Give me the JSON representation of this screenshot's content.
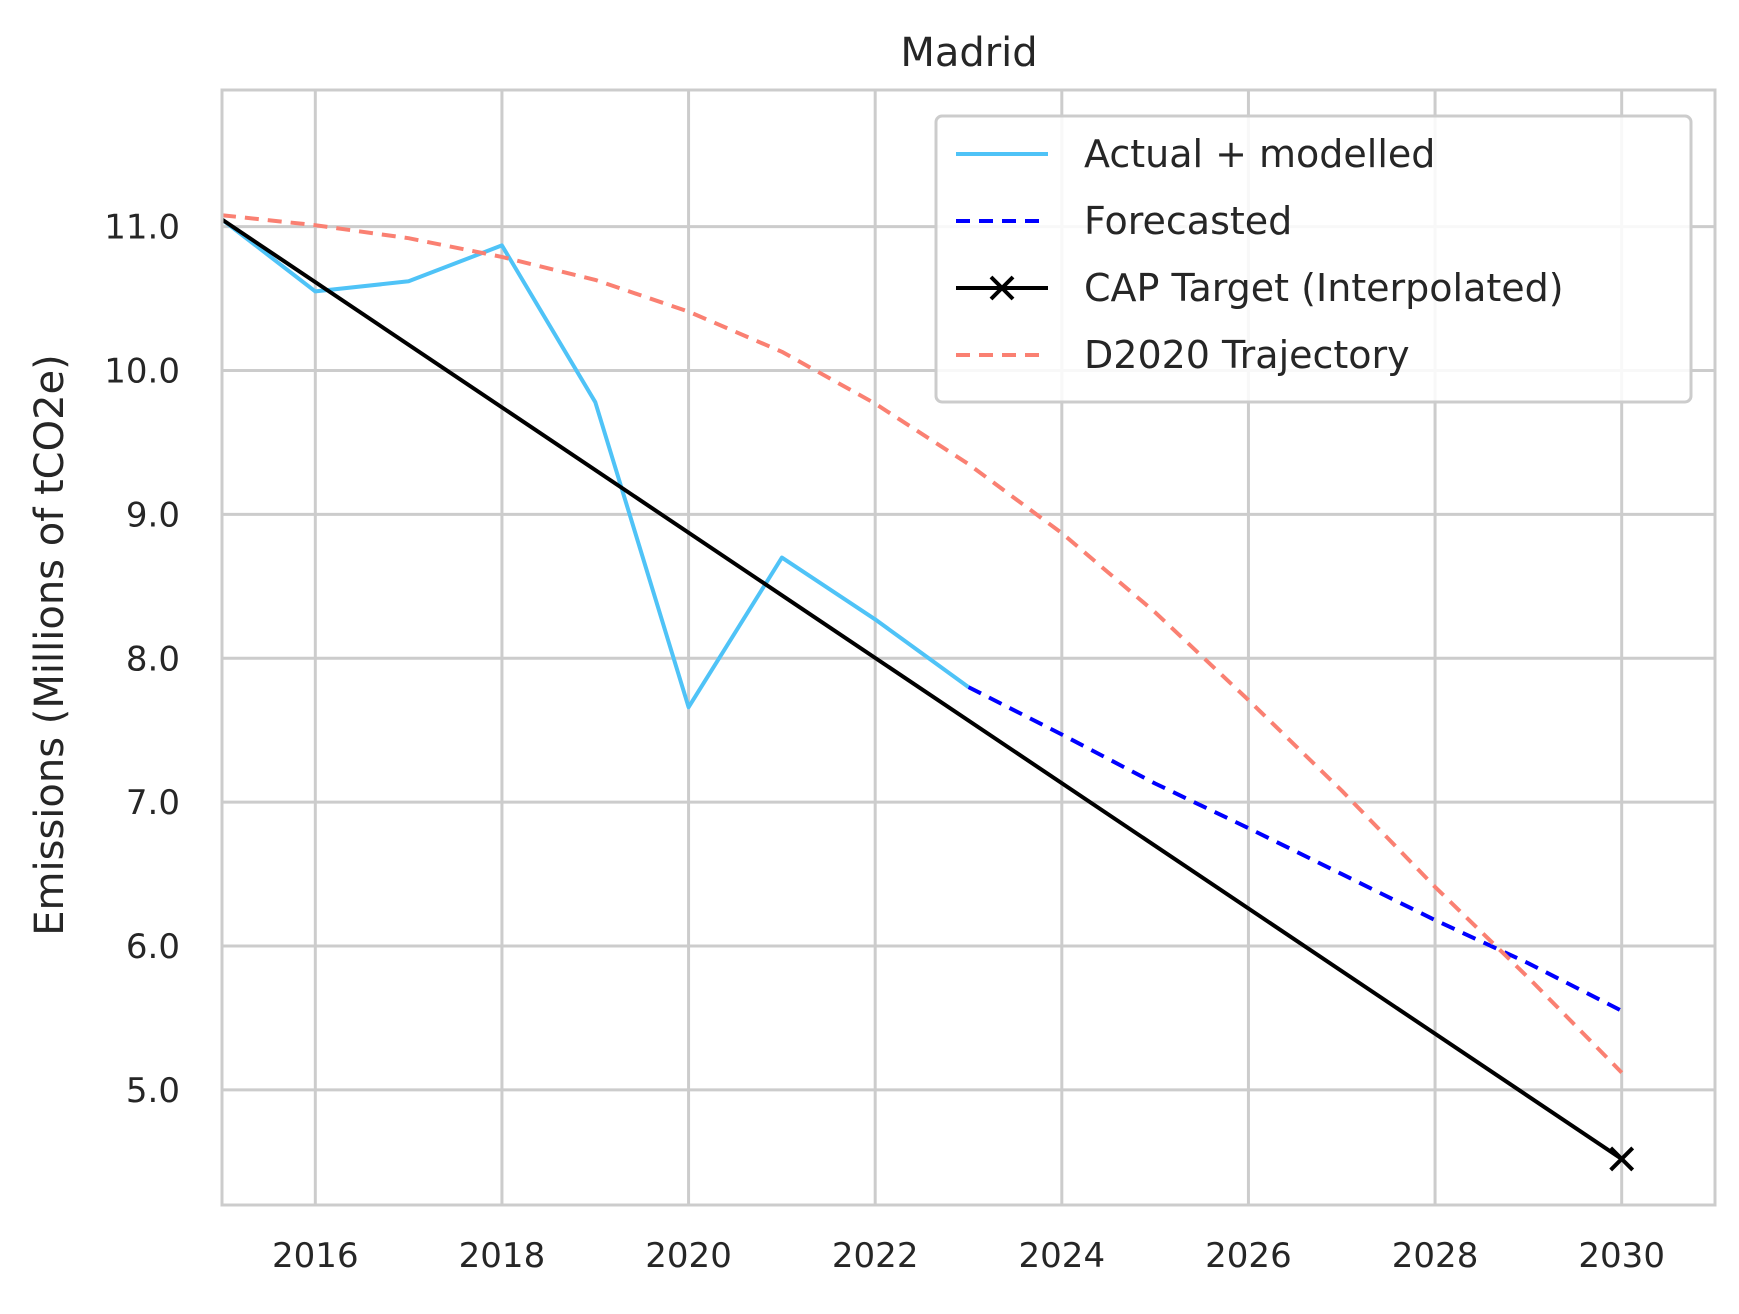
{
  "chart_data": {
    "type": "line",
    "title": "Madrid",
    "xlabel": "",
    "ylabel": "Emissions (Millions of tCO2e)",
    "xlim": [
      2015,
      2031
    ],
    "ylim": [
      4.2,
      11.95
    ],
    "x_ticks": [
      2016,
      2018,
      2020,
      2022,
      2024,
      2026,
      2028,
      2030
    ],
    "x_tick_labels": [
      "2016",
      "2018",
      "2020",
      "2022",
      "2024",
      "2026",
      "2028",
      "2030"
    ],
    "y_ticks": [
      5,
      6,
      7,
      8,
      9,
      10,
      11
    ],
    "y_tick_labels": [
      "5.0",
      "6.0",
      "7.0",
      "8.0",
      "9.0",
      "10.0",
      "11.0"
    ],
    "grid": true,
    "legend_position": "top-right",
    "series": [
      {
        "name": "Actual + modelled",
        "color": "#4fc3f7",
        "style": "solid",
        "marker": "none",
        "x": [
          2015,
          2016,
          2017,
          2018,
          2019,
          2020,
          2021,
          2022,
          2023
        ],
        "y": [
          11.05,
          10.55,
          10.62,
          10.87,
          9.78,
          7.66,
          8.7,
          8.27,
          7.8
        ]
      },
      {
        "name": "Forecasted",
        "color": "#0000ff",
        "style": "dashed",
        "marker": "none",
        "x": [
          2023,
          2024,
          2025,
          2026,
          2027,
          2028,
          2029,
          2030
        ],
        "y": [
          7.8,
          7.47,
          7.13,
          6.82,
          6.5,
          6.18,
          5.88,
          5.55
        ]
      },
      {
        "name": "CAP Target (Interpolated)",
        "color": "#000000",
        "style": "solid",
        "marker": "x-end",
        "x": [
          2015,
          2030
        ],
        "y": [
          11.05,
          4.52
        ]
      },
      {
        "name": "D2020 Trajectory",
        "color": "#fa8072",
        "style": "dashed",
        "marker": "none",
        "x": [
          2015,
          2016,
          2017,
          2018,
          2019,
          2020,
          2021,
          2022,
          2023,
          2024,
          2025,
          2026,
          2027,
          2028,
          2029,
          2030
        ],
        "y": [
          11.08,
          11.01,
          10.92,
          10.79,
          10.63,
          10.41,
          10.13,
          9.77,
          9.35,
          8.87,
          8.32,
          7.71,
          7.08,
          6.41,
          5.78,
          5.12
        ]
      }
    ]
  }
}
